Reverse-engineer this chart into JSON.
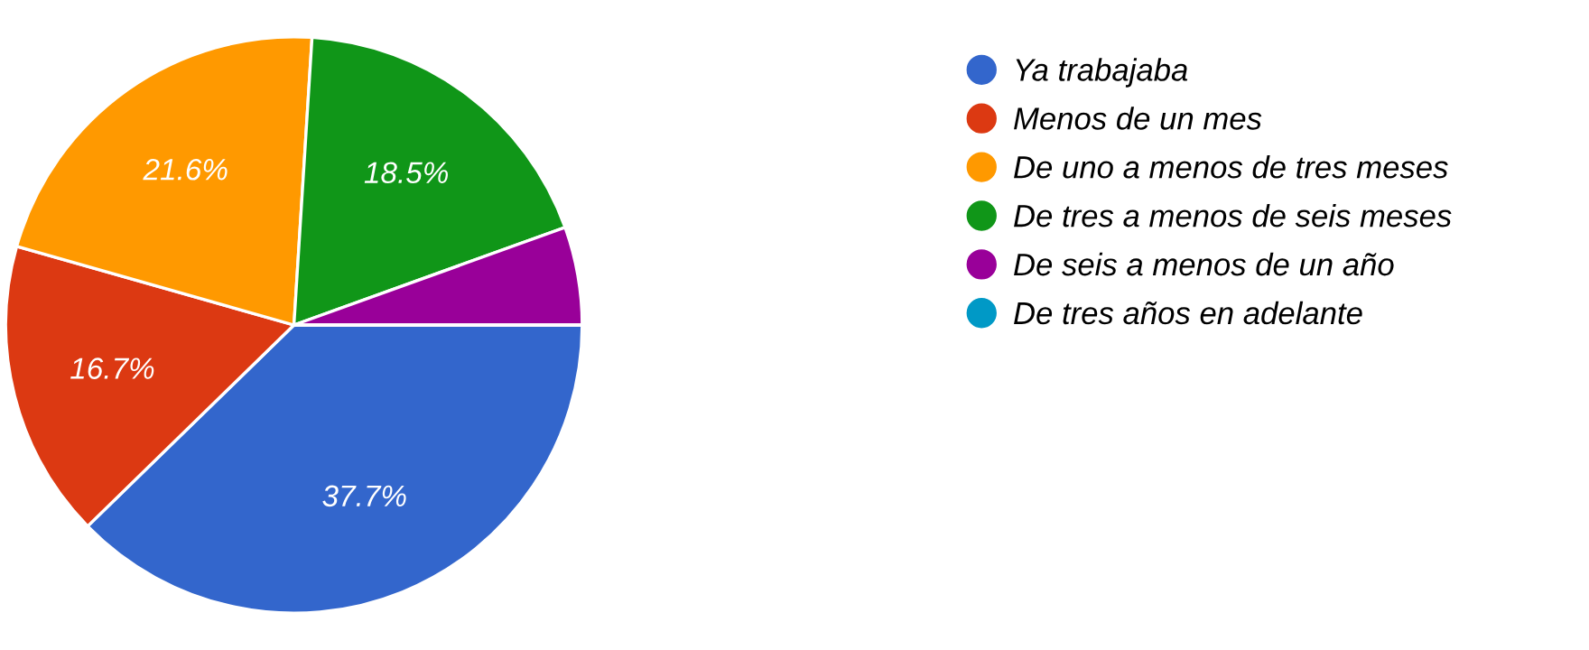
{
  "chart_data": {
    "type": "pie",
    "categories": [
      "Ya trabajaba",
      "Menos de un mes",
      "De uno a menos de tres meses",
      "De tres a menos de seis meses",
      "De seis a menos de un año",
      "De tres años en adelante"
    ],
    "values": [
      37.7,
      16.7,
      21.6,
      18.5,
      5.5,
      0
    ],
    "colors": [
      "#3366cc",
      "#dc3912",
      "#ff9900",
      "#109618",
      "#990099",
      "#0099c6"
    ],
    "value_labels": [
      "37.7%",
      "16.7%",
      "21.6%",
      "18.5%",
      null,
      null
    ],
    "legend": "right"
  }
}
